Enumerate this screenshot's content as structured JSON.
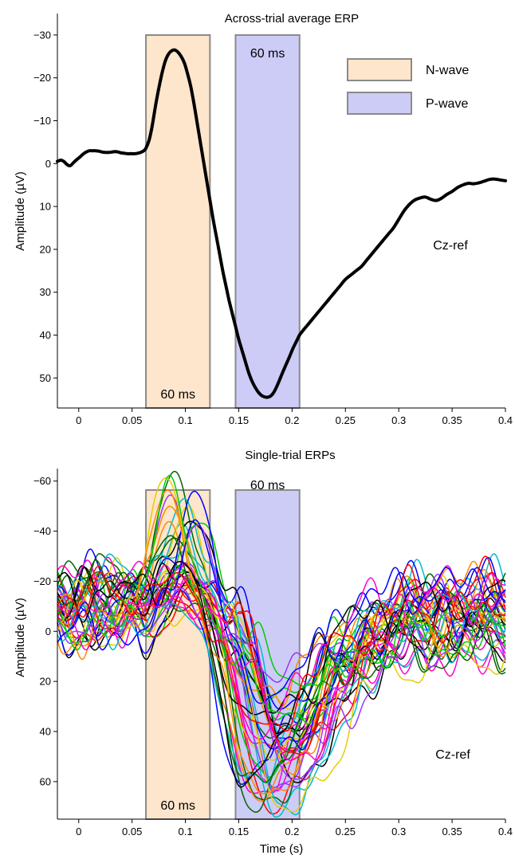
{
  "chart_data": [
    {
      "type": "line",
      "title": "Across-trial average ERP",
      "xlabel": "",
      "ylabel": "Amplitude (µV)",
      "xlim": [
        -0.02,
        0.4
      ],
      "ylim": [
        -35,
        57
      ],
      "y_inverted": true,
      "x_ticks": [
        "0",
        "0.05",
        "0.1",
        "0.15",
        "0.2",
        "0.25",
        "0.3",
        "0.35",
        "0.4"
      ],
      "y_ticks": [
        "−30",
        "−20",
        "−10",
        "0",
        "10",
        "20",
        "30",
        "40",
        "50"
      ],
      "grid": false,
      "legend": {
        "position": "top-right",
        "entries": [
          {
            "label": "N-wave",
            "color": "#fde6cc"
          },
          {
            "label": "P-wave",
            "color": "#ccccf7"
          }
        ]
      },
      "windows": [
        {
          "name": "N-wave",
          "x_start": 0.063,
          "x_end": 0.123,
          "label": "60 ms",
          "color": "#fde6cc"
        },
        {
          "name": "P-wave",
          "x_start": 0.147,
          "x_end": 0.207,
          "label": "60 ms",
          "color": "#ccccf7"
        }
      ],
      "annotation": "Cz-ref",
      "series": [
        {
          "color": "#000000",
          "x": [
            -0.02,
            -0.017,
            -0.014,
            -0.011,
            -0.008,
            -0.005,
            -0.002,
            0.001,
            0.004,
            0.007,
            0.01,
            0.013,
            0.016,
            0.019,
            0.022,
            0.025,
            0.028,
            0.031,
            0.034,
            0.037,
            0.04,
            0.043,
            0.046,
            0.049,
            0.052,
            0.055,
            0.058,
            0.061,
            0.063,
            0.066,
            0.069,
            0.072,
            0.075,
            0.078,
            0.081,
            0.084,
            0.087,
            0.09,
            0.093,
            0.096,
            0.099,
            0.102,
            0.105,
            0.108,
            0.111,
            0.114,
            0.117,
            0.12,
            0.123,
            0.126,
            0.129,
            0.132,
            0.135,
            0.138,
            0.141,
            0.144,
            0.147,
            0.15,
            0.153,
            0.156,
            0.159,
            0.162,
            0.165,
            0.168,
            0.171,
            0.174,
            0.177,
            0.18,
            0.183,
            0.186,
            0.189,
            0.192,
            0.195,
            0.198,
            0.201,
            0.204,
            0.207,
            0.21,
            0.215,
            0.22,
            0.225,
            0.23,
            0.235,
            0.24,
            0.245,
            0.25,
            0.255,
            0.26,
            0.265,
            0.27,
            0.275,
            0.28,
            0.285,
            0.29,
            0.295,
            0.3,
            0.305,
            0.31,
            0.315,
            0.32,
            0.325,
            0.33,
            0.335,
            0.34,
            0.345,
            0.35,
            0.355,
            0.36,
            0.365,
            0.37,
            0.375,
            0.38,
            0.385,
            0.39,
            0.395,
            0.4
          ],
          "y": [
            -0.5,
            -0.8,
            -0.5,
            0.2,
            0.5,
            -0.2,
            -0.9,
            -1.5,
            -2.2,
            -2.7,
            -3.0,
            -3.0,
            -3.0,
            -2.9,
            -2.7,
            -2.6,
            -2.6,
            -2.7,
            -2.8,
            -2.7,
            -2.5,
            -2.4,
            -2.3,
            -2.3,
            -2.3,
            -2.4,
            -2.6,
            -3.0,
            -3.6,
            -5.5,
            -9.0,
            -13.5,
            -17.5,
            -21.0,
            -23.8,
            -25.5,
            -26.3,
            -26.5,
            -26.0,
            -25.0,
            -23.5,
            -21.0,
            -18.0,
            -14.0,
            -9.5,
            -5.0,
            -0.5,
            4.0,
            8.5,
            13.0,
            17.0,
            21.0,
            25.0,
            28.5,
            32.0,
            35.0,
            38.0,
            41.0,
            43.5,
            46.0,
            48.5,
            50.5,
            52.0,
            53.2,
            54.0,
            54.4,
            54.5,
            54.2,
            53.3,
            51.8,
            50.0,
            48.2,
            46.5,
            44.8,
            43.0,
            41.5,
            40.0,
            39.0,
            37.5,
            36.0,
            34.5,
            33.0,
            31.5,
            30.0,
            28.5,
            27.0,
            26.0,
            25.0,
            24.0,
            22.5,
            21.0,
            19.5,
            18.0,
            16.5,
            15.0,
            13.0,
            11.0,
            9.5,
            8.5,
            8.0,
            7.8,
            8.3,
            8.6,
            8.1,
            7.2,
            6.5,
            5.6,
            5.0,
            4.6,
            4.7,
            4.5,
            4.1,
            3.7,
            3.6,
            3.8,
            4.0
          ]
        }
      ]
    },
    {
      "type": "line",
      "title": "Single-trial ERPs",
      "xlabel": "Time (s)",
      "ylabel": "Amplitude (µV)",
      "xlim": [
        -0.02,
        0.4
      ],
      "ylim": [
        -65,
        75
      ],
      "y_inverted": true,
      "x_ticks": [
        "0",
        "0.05",
        "0.1",
        "0.15",
        "0.2",
        "0.25",
        "0.3",
        "0.35",
        "0.4"
      ],
      "y_ticks": [
        "−60",
        "−40",
        "−20",
        "0",
        "20",
        "40",
        "60"
      ],
      "grid": false,
      "windows": [
        {
          "name": "N-wave",
          "x_start": 0.063,
          "x_end": 0.123,
          "label": "60 ms",
          "color": "#fde6cc"
        },
        {
          "name": "P-wave",
          "x_start": 0.147,
          "x_end": 0.207,
          "label": "60 ms",
          "color": "#ccccf7"
        }
      ],
      "annotation": "Cz-ref",
      "trial_count": 45,
      "trial_colors": [
        "#000000",
        "#0000ff",
        "#00cc00",
        "#ff0000",
        "#ff00cc",
        "#e6cc00",
        "#00bbcc",
        "#006600",
        "#9933ff",
        "#ff8800"
      ],
      "n_peak_range": [
        -62,
        -10
      ],
      "n_peak_x_range": [
        0.08,
        0.115
      ],
      "p_peak_range": [
        10,
        73
      ],
      "p_peak_x_range": [
        0.15,
        0.2
      ],
      "end_value_range": [
        -20,
        10
      ]
    }
  ]
}
